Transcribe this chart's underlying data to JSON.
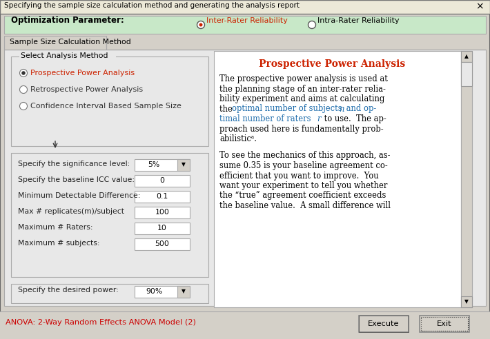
{
  "title": "Specifying the sample size calculation method and generating the analysis report",
  "bg_color": "#d4d0c8",
  "light_green": "#c8e8c8",
  "panel_bg": "#e8e8e8",
  "white": "#ffffff",
  "orange_red": "#cc2200",
  "blue_link": "#1a6aaa",
  "tab_label": "Sample Size Calculation Method",
  "opt_param_label": "Optimization Parameter:",
  "radio1_label": "Inter-Rater Reliability",
  "radio2_label": "Intra-Rater Reliability",
  "group_label": "Select Analysis Method",
  "analysis_methods": [
    "Prospective Power Analysis",
    "Retrospective Power Analysis",
    "Confidence Interval Based Sample Size"
  ],
  "fields": [
    {
      "label": "Specify the significance level:",
      "value": "5%",
      "dropdown": true
    },
    {
      "label": "Specify the baseline ICC value:",
      "value": "0",
      "dropdown": false
    },
    {
      "label": "Minimum Detectable Difference:",
      "value": "0.1",
      "dropdown": false
    },
    {
      "label": "Max # replicates(m)/subject",
      "value": "100",
      "dropdown": false
    },
    {
      "label": "Maximum # Raters:",
      "value": "10",
      "dropdown": false
    },
    {
      "label": "Maximum # subjects:",
      "value": "500",
      "dropdown": false
    }
  ],
  "power_label": "Specify the desired power:",
  "power_value": "90%",
  "anova_text": "ANOVA: 2-Way Random Effects ANOVA Model (2)",
  "ppa_title": "Prospective Power Analysis",
  "execute_btn": "Execute",
  "exit_btn": "Exit"
}
